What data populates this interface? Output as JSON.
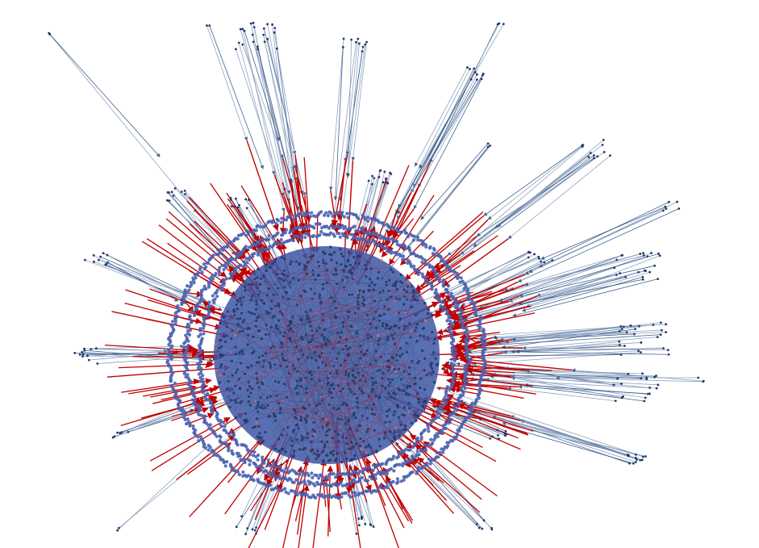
{
  "figure": {
    "kind": "network-graph",
    "layout_description": "radial",
    "colors": {
      "background": "#ffffff",
      "node_fill": "#4a62b0",
      "node_dark": "#1f3a68",
      "edge_blue": "#7d93b8",
      "edge_dark_blue": "#244a7a",
      "edge_red": "#c00000",
      "node_highlight": "#d66a6a"
    },
    "legend": null,
    "title": null
  }
}
